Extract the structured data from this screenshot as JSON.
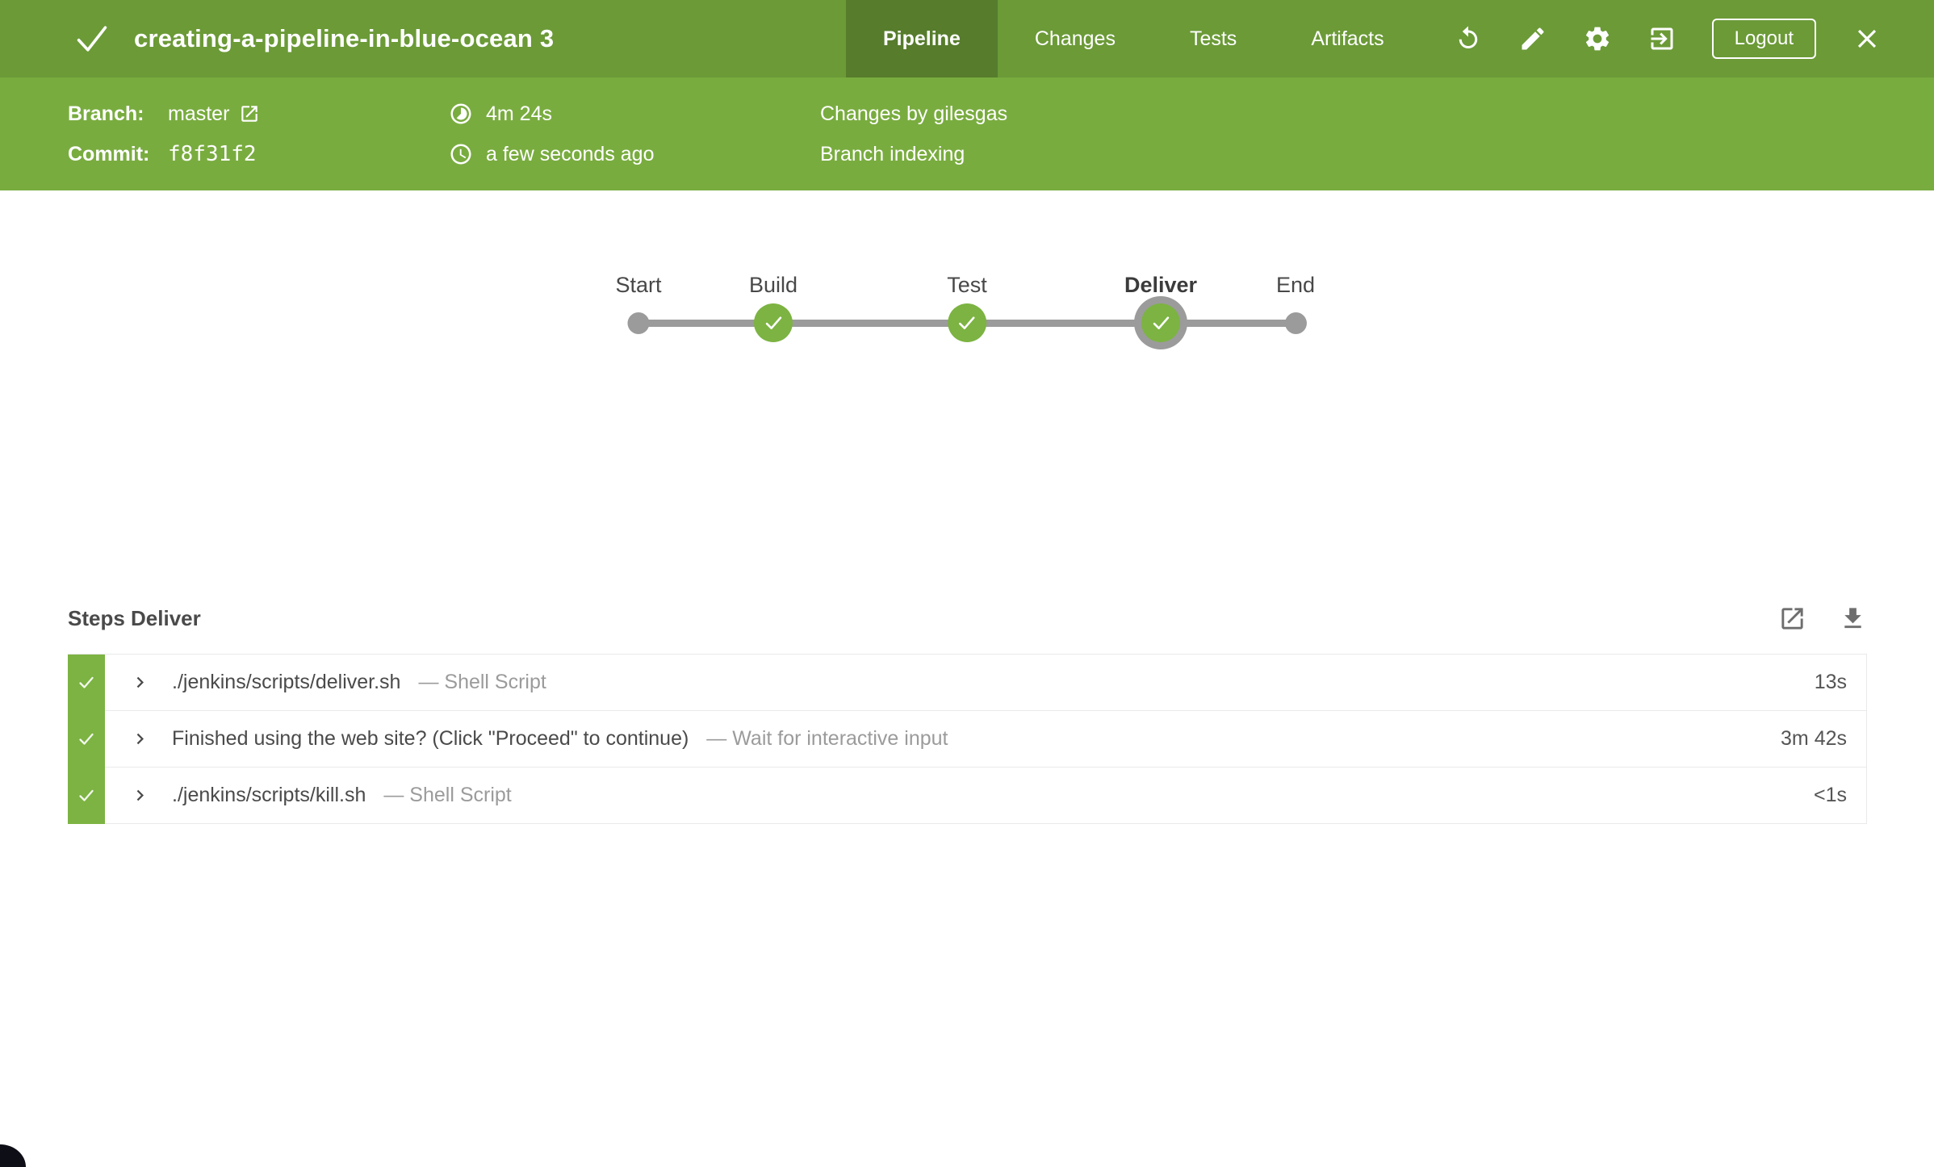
{
  "colors": {
    "header_green": "#6b9a37",
    "info_green": "#79ac3f",
    "active_tab_green": "#567c2c",
    "success_green": "#7cb342",
    "node_gray": "#9b9b9b",
    "text_dark": "#4a4a4a",
    "text_muted": "#9b9b9b",
    "row_border": "#e9e9e9"
  },
  "header": {
    "status": "success",
    "title": "creating-a-pipeline-in-blue-ocean 3",
    "tabs": [
      {
        "label": "Pipeline",
        "active": true
      },
      {
        "label": "Changes",
        "active": false
      },
      {
        "label": "Tests",
        "active": false
      },
      {
        "label": "Artifacts",
        "active": false
      }
    ],
    "actions": {
      "rerun_icon": "rerun",
      "edit_icon": "edit",
      "settings_icon": "settings",
      "go_to_classic_icon": "go-to-classic",
      "logout_label": "Logout",
      "close_icon": "close"
    }
  },
  "run_details": {
    "branch_label": "Branch:",
    "branch_value": "master",
    "commit_label": "Commit:",
    "commit_value": "f8f31f2",
    "duration": "4m 24s",
    "completed": "a few seconds ago",
    "changes": "Changes by gilesgas",
    "cause": "Branch indexing"
  },
  "pipeline_graph": {
    "nodes": [
      {
        "label": "Start",
        "type": "terminal",
        "selected": false
      },
      {
        "label": "Build",
        "type": "success",
        "selected": false
      },
      {
        "label": "Test",
        "type": "success",
        "selected": false
      },
      {
        "label": "Deliver",
        "type": "success",
        "selected": true
      },
      {
        "label": "End",
        "type": "terminal",
        "selected": false
      }
    ]
  },
  "steps": {
    "title": "Steps Deliver",
    "rows": [
      {
        "status": "success",
        "name": "./jenkins/scripts/deliver.sh",
        "description": "— Shell Script",
        "duration": "13s"
      },
      {
        "status": "success",
        "name": "Finished using the web site? (Click \"Proceed\" to continue)",
        "description": "— Wait for interactive input",
        "duration": "3m 42s"
      },
      {
        "status": "success",
        "name": "./jenkins/scripts/kill.sh",
        "description": "— Shell Script",
        "duration": "<1s"
      }
    ]
  }
}
